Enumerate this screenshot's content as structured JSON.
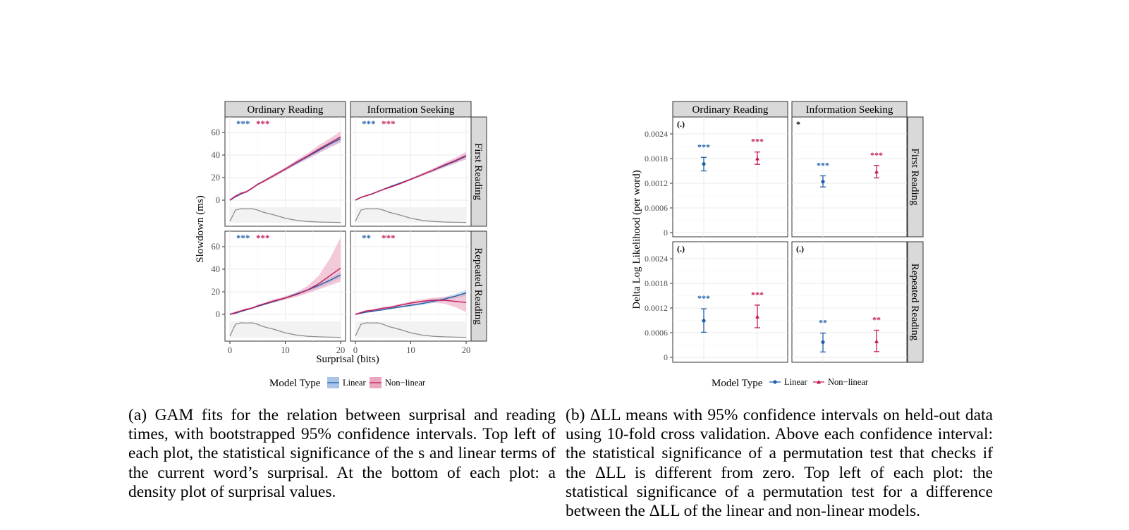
{
  "figure_left": {
    "panel_columns": [
      "Ordinary Reading",
      "Information Seeking"
    ],
    "panel_rows": [
      "First Reading",
      "Repeated Reading"
    ],
    "xlabel": "Surprisal (bits)",
    "ylabel": "Slowdown (ms)",
    "legend_title": "Model Type",
    "legend_items": [
      "Linear",
      "Non−linear"
    ]
  },
  "figure_right": {
    "panel_columns": [
      "Ordinary Reading",
      "Information Seeking"
    ],
    "panel_rows": [
      "First Reading",
      "Repeated Reading"
    ],
    "ylabel": "Delta Log Likelihood (per word)",
    "legend_title": "Model Type",
    "legend_items": [
      "Linear",
      "Non−linear"
    ]
  },
  "captions": {
    "left": "(a) GAM fits for the relation between surprisal and reading times, with bootstrapped 95% confidence intervals. Top left of each plot, the statistical significance of the s and linear terms of the current word’s surprisal. At the bottom of each plot: a density plot of surprisal values.",
    "right": "(b) ΔLL means with 95% confidence intervals on held-out data using 10-fold cross validation. Above each confidence interval: the statistical significance of a permutation test that checks if the ΔLL is different from zero. Top left of each plot: the statistical significance of a permutation test for a difference between the ΔLL of the linear and non-linear models."
  },
  "colors": {
    "linear": "#1f5fa8",
    "nonlinear": "#c2185b",
    "linear_band": "#a9c4e6",
    "nonlinear_band": "#eaa6bf"
  },
  "chart_data": [
    {
      "type": "line",
      "xlabel": "Surprisal (bits)",
      "ylabel": "Slowdown (ms)",
      "xlim": [
        0,
        20
      ],
      "ylim": [
        -20,
        68
      ],
      "xticks": [
        0,
        10,
        20
      ],
      "yticks": [
        0,
        20,
        40,
        60
      ],
      "grid": true,
      "legend": "bottom",
      "panels": [
        {
          "column": "Ordinary Reading",
          "row": "First Reading",
          "significance": {
            "linear": "***",
            "nonlinear": "***"
          },
          "x": [
            0,
            1,
            2,
            3,
            4,
            5,
            6,
            8,
            10,
            12,
            14,
            16,
            18,
            20
          ],
          "series": [
            {
              "name": "Linear",
              "values": [
                0,
                3,
                5.5,
                7.5,
                10.5,
                14,
                16.5,
                22,
                27.5,
                33,
                38.5,
                44,
                49.5,
                54.5
              ],
              "lower": [
                -0.8,
                2.2,
                4.8,
                6.8,
                9.8,
                13.2,
                15.6,
                20.8,
                26.2,
                31.4,
                36.6,
                41.8,
                47,
                51.8
              ],
              "upper": [
                0.8,
                3.8,
                6.2,
                8.2,
                11.2,
                14.8,
                17.4,
                23.2,
                28.8,
                34.6,
                40.4,
                46.2,
                52,
                57.2
              ]
            },
            {
              "name": "Non−linear",
              "values": [
                0,
                3.5,
                6,
                7.5,
                10.5,
                14,
                16.5,
                22,
                27.5,
                33.5,
                39,
                45,
                50.5,
                56
              ],
              "lower": [
                -1,
                2.5,
                5,
                6.5,
                9.5,
                13,
                15.5,
                20.5,
                26,
                31.5,
                36.5,
                41.5,
                46.5,
                51
              ],
              "upper": [
                1,
                4.5,
                7,
                8.5,
                11.5,
                15,
                17.5,
                23.5,
                29,
                35.5,
                41.5,
                48.5,
                54.5,
                61
              ]
            }
          ],
          "density": [
            0.1,
            0.9,
            1.0,
            0.98,
            1.0,
            0.9,
            0.75,
            0.55,
            0.32,
            0.17,
            0.09,
            0.05,
            0.03,
            0.02
          ]
        },
        {
          "column": "Information Seeking",
          "row": "First Reading",
          "significance": {
            "linear": "***",
            "nonlinear": "***"
          },
          "x": [
            0,
            1,
            2,
            3,
            4,
            5,
            6,
            8,
            10,
            12,
            14,
            16,
            18,
            20
          ],
          "series": [
            {
              "name": "Linear",
              "values": [
                0,
                2.5,
                4,
                5.5,
                7.5,
                9.5,
                11.5,
                15,
                18.5,
                22.5,
                26.5,
                30.5,
                34.5,
                39
              ],
              "lower": [
                -0.5,
                2,
                3.5,
                5,
                7,
                9,
                11,
                14.3,
                17.8,
                21.5,
                25.3,
                29,
                32.8,
                37
              ],
              "upper": [
                0.5,
                3,
                4.5,
                6,
                8,
                10,
                12,
                15.7,
                19.2,
                23.5,
                27.7,
                32,
                36.2,
                41
              ]
            },
            {
              "name": "Non−linear",
              "values": [
                0,
                2.5,
                4,
                5.5,
                7.5,
                9.5,
                11,
                14.5,
                18.5,
                22.5,
                26.5,
                31,
                35,
                39.5
              ],
              "lower": [
                -0.8,
                1.8,
                3.3,
                4.8,
                6.8,
                8.8,
                10.3,
                13.7,
                17.5,
                21.3,
                25,
                29,
                32.5,
                36
              ],
              "upper": [
                0.8,
                3.2,
                4.7,
                6.2,
                8.2,
                10.2,
                11.7,
                15.3,
                19.5,
                23.7,
                28,
                33,
                37.5,
                43
              ]
            }
          ],
          "density": [
            0.1,
            0.9,
            1.0,
            0.98,
            1.0,
            0.9,
            0.75,
            0.55,
            0.32,
            0.17,
            0.09,
            0.05,
            0.03,
            0.02
          ]
        },
        {
          "column": "Ordinary Reading",
          "row": "Repeated Reading",
          "significance": {
            "linear": "***",
            "nonlinear": "***"
          },
          "x": [
            0,
            1,
            2,
            3,
            4,
            5,
            6,
            8,
            10,
            12,
            14,
            16,
            18,
            20
          ],
          "series": [
            {
              "name": "Linear",
              "values": [
                0,
                1,
                2.5,
                4,
                5.5,
                7,
                8.5,
                11.5,
                14.5,
                18,
                21.5,
                25.5,
                30,
                35
              ],
              "lower": [
                -0.5,
                0.5,
                2,
                3.5,
                5,
                6.5,
                8,
                10.8,
                13.6,
                16.8,
                20,
                23.6,
                27.6,
                32
              ],
              "upper": [
                0.5,
                1.5,
                3,
                4.5,
                6,
                7.5,
                9,
                12.2,
                15.4,
                19.2,
                23,
                27.4,
                32.4,
                38
              ]
            },
            {
              "name": "Non−linear",
              "values": [
                0,
                1.5,
                3,
                4.5,
                5.5,
                7.5,
                9,
                12,
                14.5,
                17.5,
                21.5,
                27,
                34,
                41
              ],
              "lower": [
                -1,
                0.5,
                2,
                3.5,
                4.5,
                6.5,
                8,
                10.5,
                13,
                15.5,
                18.5,
                22,
                25.5,
                29
              ],
              "upper": [
                1,
                2.5,
                4,
                5.5,
                6.5,
                8.5,
                10,
                13.5,
                16,
                19.5,
                25,
                34,
                49,
                68
              ]
            }
          ],
          "density": [
            0.1,
            0.9,
            1.0,
            0.98,
            1.0,
            0.9,
            0.75,
            0.55,
            0.32,
            0.17,
            0.09,
            0.05,
            0.03,
            0.02
          ]
        },
        {
          "column": "Information Seeking",
          "row": "Repeated Reading",
          "significance": {
            "linear": "**",
            "nonlinear": "***"
          },
          "x": [
            0,
            1,
            2,
            3,
            4,
            5,
            6,
            8,
            10,
            12,
            14,
            16,
            18,
            20
          ],
          "series": [
            {
              "name": "Linear",
              "values": [
                0,
                1,
                2,
                2.5,
                3.5,
                4,
                5,
                6.5,
                8,
                9.5,
                11.5,
                13.5,
                16,
                19
              ],
              "lower": [
                -0.5,
                0.5,
                1.5,
                2,
                3,
                3.5,
                4.3,
                5.7,
                7,
                8.3,
                10,
                11.8,
                14,
                16.5
              ],
              "upper": [
                0.5,
                1.5,
                2.5,
                3,
                4,
                4.5,
                5.7,
                7.3,
                9,
                10.7,
                13,
                15.2,
                18,
                21.5
              ]
            },
            {
              "name": "Non−linear",
              "values": [
                0,
                1.5,
                3,
                3.5,
                4.5,
                5.5,
                6,
                8,
                10,
                11.5,
                12.5,
                12.5,
                11.5,
                10.5
              ],
              "lower": [
                -1,
                0.5,
                2,
                2.5,
                3.5,
                4.5,
                5,
                6.8,
                8.5,
                9.8,
                10.3,
                9.5,
                6.5,
                2
              ],
              "upper": [
                1,
                2.5,
                4,
                4.5,
                5.5,
                6.5,
                7,
                9.2,
                11.5,
                13.2,
                14.7,
                15.5,
                16.5,
                19
              ]
            }
          ],
          "density": [
            0.1,
            0.9,
            1.0,
            0.98,
            1.0,
            0.9,
            0.75,
            0.55,
            0.32,
            0.17,
            0.09,
            0.05,
            0.03,
            0.02
          ]
        }
      ]
    },
    {
      "type": "scatter",
      "ylabel": "Delta Log Likelihood (per word)",
      "ylim": [
        -0.0001,
        0.0027
      ],
      "yticks": [
        0,
        0.0006,
        0.0012,
        0.0018,
        0.0024
      ],
      "ytick_labels": [
        "0",
        "0.0006",
        "0.0012",
        "0.0018",
        "0.0024"
      ],
      "grid": true,
      "legend": "bottom",
      "categories": [
        "Linear",
        "Non−linear"
      ],
      "panels": [
        {
          "column": "Ordinary Reading",
          "row": "First Reading",
          "difference_significance": "(.)",
          "series": [
            {
              "name": "Linear",
              "mean": 0.00167,
              "lower": 0.0015,
              "upper": 0.00183,
              "significance": "***"
            },
            {
              "name": "Non−linear",
              "mean": 0.0018,
              "lower": 0.00166,
              "upper": 0.00196,
              "significance": "***"
            }
          ]
        },
        {
          "column": "Information Seeking",
          "row": "First Reading",
          "difference_significance": "*",
          "series": [
            {
              "name": "Linear",
              "mean": 0.00124,
              "lower": 0.00111,
              "upper": 0.00138,
              "significance": "***"
            },
            {
              "name": "Non−linear",
              "mean": 0.00148,
              "lower": 0.00133,
              "upper": 0.00163,
              "significance": "***"
            }
          ]
        },
        {
          "column": "Ordinary Reading",
          "row": "Repeated Reading",
          "difference_significance": "(.)",
          "series": [
            {
              "name": "Linear",
              "mean": 0.00089,
              "lower": 0.00061,
              "upper": 0.00118,
              "significance": "***"
            },
            {
              "name": "Non−linear",
              "mean": 0.00099,
              "lower": 0.00072,
              "upper": 0.00127,
              "significance": "***"
            }
          ]
        },
        {
          "column": "Information Seeking",
          "row": "Repeated Reading",
          "difference_significance": "(.)",
          "series": [
            {
              "name": "Linear",
              "mean": 0.00037,
              "lower": 0.00013,
              "upper": 0.00059,
              "significance": "**"
            },
            {
              "name": "Non−linear",
              "mean": 0.00039,
              "lower": 0.00014,
              "upper": 0.00066,
              "significance": "**"
            }
          ]
        }
      ]
    }
  ]
}
